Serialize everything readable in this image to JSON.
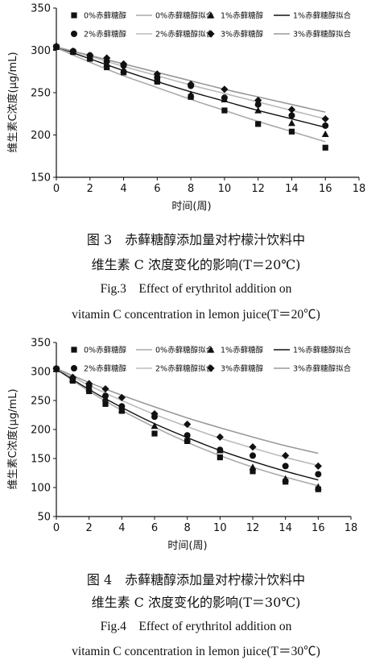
{
  "chart_data": [
    {
      "type": "scatter",
      "title": "",
      "xlabel": "时间(周)",
      "ylabel": "维生素C浓度(μg/mL)",
      "xlim": [
        0,
        18
      ],
      "ylim": [
        150,
        350
      ],
      "xticks": [
        0,
        2,
        4,
        6,
        8,
        10,
        12,
        14,
        16,
        18
      ],
      "yticks": [
        150,
        200,
        250,
        300,
        350
      ],
      "legend": "top",
      "series": [
        {
          "name": "0%赤藓糖醇",
          "marker": "square",
          "x": [
            0,
            1,
            2,
            3,
            4,
            6,
            8,
            10,
            12,
            14,
            16
          ],
          "values": [
            304,
            298,
            290,
            280,
            274,
            263,
            245,
            229,
            213,
            204,
            185
          ]
        },
        {
          "name": "0%赤藓糖醇拟合",
          "marker": "line",
          "color": "#aaaaaa",
          "x": [
            0,
            2,
            4,
            6,
            8,
            10,
            12,
            14,
            16
          ],
          "values": [
            303,
            286,
            270,
            256,
            242,
            229,
            216,
            204,
            192
          ]
        },
        {
          "name": "1%赤藓糖醇",
          "marker": "triangle",
          "x": [
            0,
            1,
            2,
            3,
            4,
            6,
            8,
            10,
            12,
            14,
            16
          ],
          "values": [
            304,
            299,
            292,
            284,
            277,
            266,
            248,
            242,
            229,
            214,
            201
          ]
        },
        {
          "name": "1%赤藓糖醇拟合",
          "marker": "line",
          "color": "#111111",
          "x": [
            0,
            2,
            4,
            6,
            8,
            10,
            12,
            14,
            16
          ],
          "values": [
            304,
            290,
            276,
            263,
            251,
            240,
            229,
            219,
            209
          ]
        },
        {
          "name": "2%赤藓糖醇",
          "marker": "circle",
          "x": [
            0,
            1,
            2,
            3,
            4,
            6,
            8,
            10,
            12,
            14,
            16
          ],
          "values": [
            304,
            299,
            294,
            287,
            282,
            268,
            258,
            244,
            236,
            223,
            211
          ]
        },
        {
          "name": "2%赤藓糖醇拟合",
          "marker": "line",
          "color": "#bbbbbb",
          "x": [
            0,
            2,
            4,
            6,
            8,
            10,
            12,
            14,
            16
          ],
          "values": [
            304,
            293,
            281,
            270,
            259,
            249,
            239,
            229,
            219
          ]
        },
        {
          "name": "3%赤藓糖醇",
          "marker": "diamond",
          "x": [
            0,
            1,
            2,
            3,
            4,
            6,
            8,
            10,
            12,
            14,
            16
          ],
          "values": [
            305,
            299,
            294,
            291,
            284,
            272,
            260,
            254,
            241,
            230,
            219
          ]
        },
        {
          "name": "3%赤藓糖醇拟合",
          "marker": "line",
          "color": "#999999",
          "x": [
            0,
            2,
            4,
            6,
            8,
            10,
            12,
            14,
            16
          ],
          "values": [
            304,
            294,
            284,
            274,
            264,
            254,
            245,
            236,
            227
          ]
        }
      ]
    },
    {
      "type": "scatter",
      "title": "",
      "xlabel": "时间(周)",
      "ylabel": "维生素C浓度(μg/mL)",
      "xlim": [
        0,
        18
      ],
      "ylim": [
        50,
        350
      ],
      "xticks": [
        0,
        2,
        4,
        6,
        8,
        10,
        12,
        14,
        16,
        18
      ],
      "yticks": [
        50,
        100,
        150,
        200,
        250,
        300,
        350
      ],
      "legend": "top",
      "series": [
        {
          "name": "0%赤藓糖醇",
          "marker": "square",
          "x": [
            0,
            1,
            2,
            3,
            4,
            6,
            8,
            10,
            12,
            14,
            16
          ],
          "values": [
            304,
            284,
            266,
            244,
            232,
            193,
            180,
            152,
            128,
            110,
            97
          ]
        },
        {
          "name": "0%赤藓糖醇拟合",
          "marker": "line",
          "color": "#aaaaaa",
          "x": [
            0,
            2,
            4,
            6,
            8,
            10,
            12,
            14,
            16
          ],
          "values": [
            304,
            266,
            233,
            204,
            178,
            155,
            135,
            118,
            103
          ]
        },
        {
          "name": "1%赤藓糖醇",
          "marker": "triangle",
          "x": [
            0,
            1,
            2,
            3,
            4,
            6,
            8,
            10,
            12,
            14,
            16
          ],
          "values": [
            304,
            287,
            271,
            254,
            234,
            206,
            184,
            164,
            135,
            115,
            101
          ]
        },
        {
          "name": "1%赤藓糖醇拟合",
          "marker": "line",
          "color": "#111111",
          "x": [
            0,
            2,
            4,
            6,
            8,
            10,
            12,
            14,
            16
          ],
          "values": [
            304,
            269,
            238,
            210,
            186,
            164,
            145,
            128,
            113
          ]
        },
        {
          "name": "2%赤藓糖醇",
          "marker": "circle",
          "x": [
            0,
            1,
            2,
            3,
            4,
            6,
            8,
            10,
            12,
            14,
            16
          ],
          "values": [
            305,
            288,
            275,
            258,
            240,
            222,
            190,
            165,
            155,
            137,
            123
          ]
        },
        {
          "name": "2%赤藓糖醇拟合",
          "marker": "line",
          "color": "#bbbbbb",
          "x": [
            0,
            2,
            4,
            6,
            8,
            10,
            12,
            14,
            16
          ],
          "values": [
            305,
            276,
            250,
            226,
            205,
            185,
            168,
            152,
            138
          ]
        },
        {
          "name": "3%赤藓糖醇",
          "marker": "diamond",
          "x": [
            0,
            1,
            2,
            3,
            4,
            6,
            8,
            10,
            12,
            14,
            16
          ],
          "values": [
            305,
            290,
            279,
            270,
            255,
            227,
            209,
            187,
            170,
            155,
            137
          ]
        },
        {
          "name": "3%赤藓糖醇拟合",
          "marker": "line",
          "color": "#999999",
          "x": [
            0,
            2,
            4,
            6,
            8,
            10,
            12,
            14,
            16
          ],
          "values": [
            305,
            281,
            259,
            239,
            220,
            203,
            187,
            172,
            159
          ]
        }
      ]
    }
  ],
  "captions": [
    {
      "cn1": "图 3　赤藓糖醇添加量对柠檬汁饮料中",
      "cn2": "维生素 C 浓度变化的影响(T＝20℃)",
      "en1": "Fig.3　Effect of erythritol addition on",
      "en2": "vitamin C concentration in lemon juice(T＝20℃)"
    },
    {
      "cn1": "图 4　赤藓糖醇添加量对柠檬汁饮料中",
      "cn2": "维生素 C 浓度变化的影响(T＝30℃)",
      "en1": "Fig.4　Effect of erythritol addition on",
      "en2": "vitamin C concentration in lemon juice(T＝30℃)"
    }
  ]
}
